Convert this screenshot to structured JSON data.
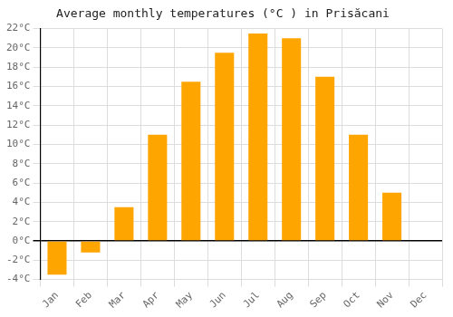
{
  "chart_data": {
    "type": "bar",
    "title": "Average monthly temperatures (°C ) in Prisăcani",
    "categories": [
      "Jan",
      "Feb",
      "Mar",
      "Apr",
      "May",
      "Jun",
      "Jul",
      "Aug",
      "Sep",
      "Oct",
      "Nov",
      "Dec"
    ],
    "values": [
      -3.5,
      -1.2,
      3.5,
      11.0,
      16.5,
      19.5,
      21.5,
      21.0,
      17.0,
      11.0,
      5.0,
      0.0
    ],
    "color": "#FFA500",
    "ylim": [
      -4,
      22
    ],
    "yticks": [
      {
        "value": -4,
        "label": "-4°C"
      },
      {
        "value": -2,
        "label": "-2°C"
      },
      {
        "value": 0,
        "label": "0°C"
      },
      {
        "value": 2,
        "label": "2°C"
      },
      {
        "value": 4,
        "label": "4°C"
      },
      {
        "value": 6,
        "label": "6°C"
      },
      {
        "value": 8,
        "label": "8°C"
      },
      {
        "value": 10,
        "label": "10°C"
      },
      {
        "value": 12,
        "label": "12°C"
      },
      {
        "value": 14,
        "label": "14°C"
      },
      {
        "value": 16,
        "label": "16°C"
      },
      {
        "value": 18,
        "label": "18°C"
      },
      {
        "value": 20,
        "label": "20°C"
      },
      {
        "value": 22,
        "label": "22°C"
      }
    ],
    "grid": true
  }
}
